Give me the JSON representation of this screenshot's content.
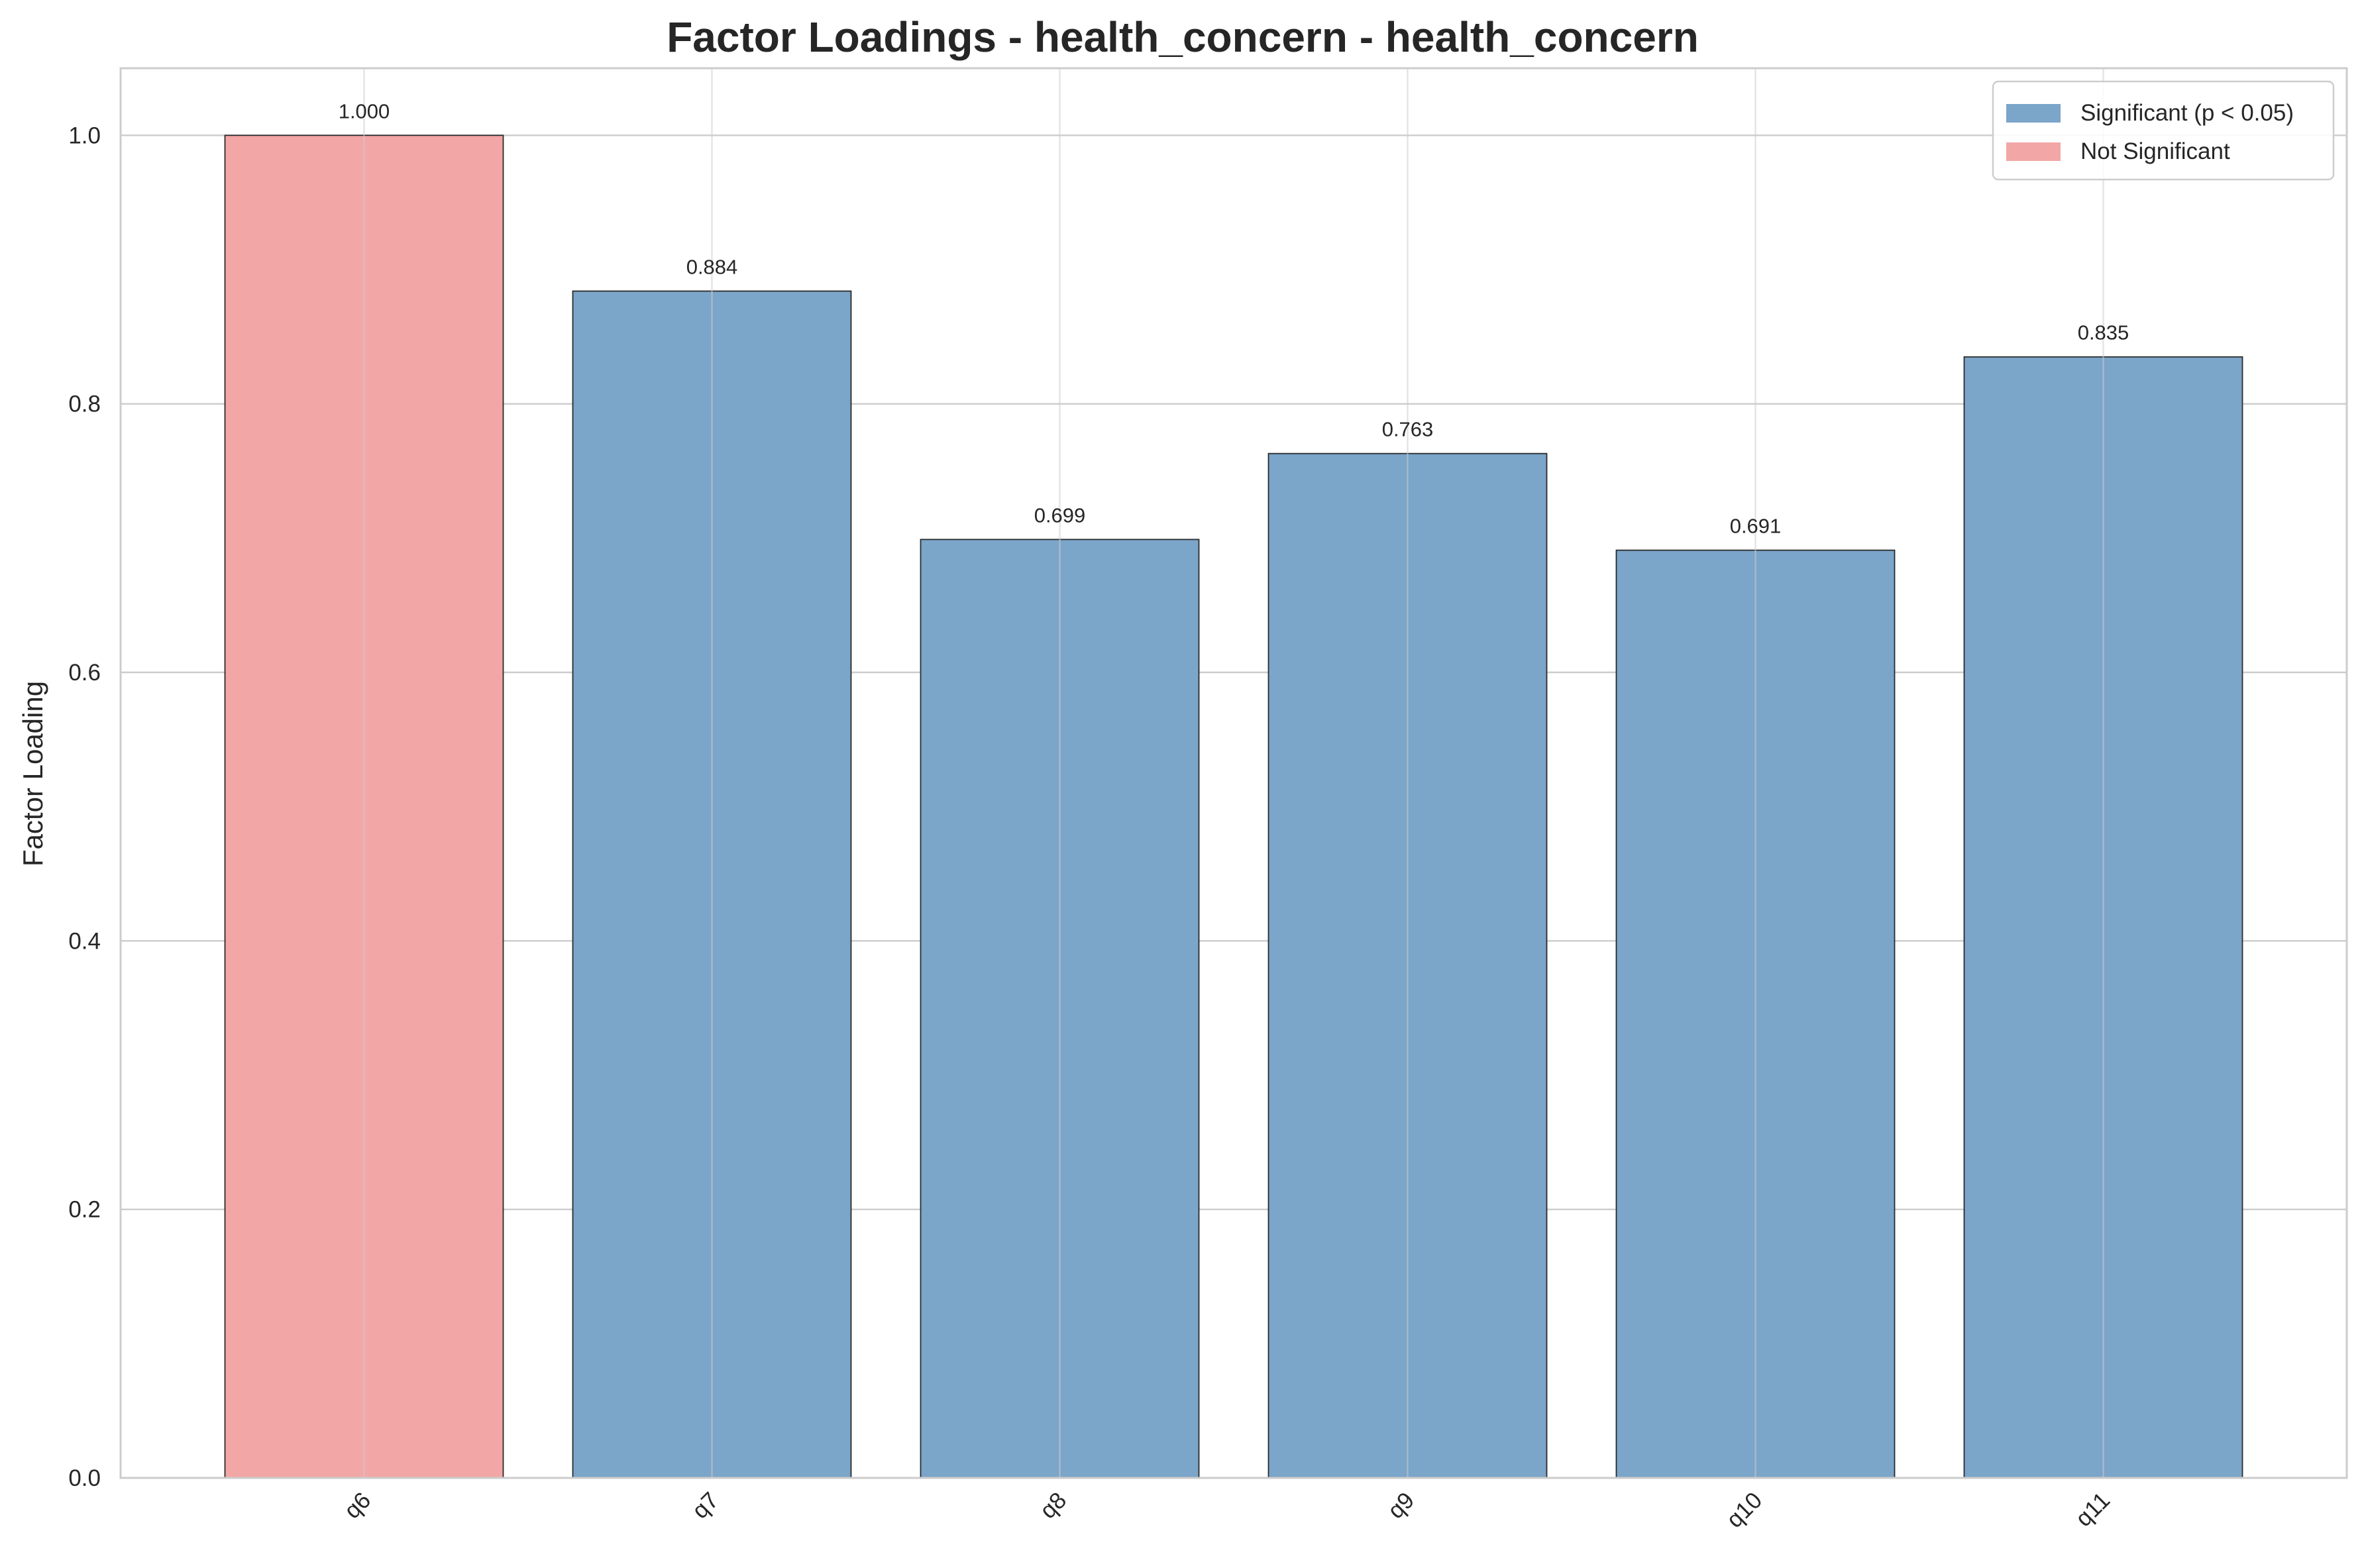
{
  "chart_data": {
    "type": "bar",
    "title": "Factor Loadings - health_concern - health_concern",
    "xlabel": "",
    "ylabel": "Factor Loading",
    "categories": [
      "q6",
      "q7",
      "q8",
      "q9",
      "q10",
      "q11"
    ],
    "values": [
      1.0,
      0.884,
      0.699,
      0.763,
      0.691,
      0.835
    ],
    "value_labels": [
      "1.000",
      "0.884",
      "0.699",
      "0.763",
      "0.691",
      "0.835"
    ],
    "significant": [
      false,
      true,
      true,
      true,
      true,
      true
    ],
    "ylim": [
      0,
      1.05
    ],
    "yticks": [
      0.0,
      0.2,
      0.4,
      0.6,
      0.8,
      1.0
    ],
    "ytick_labels": [
      "0.0",
      "0.2",
      "0.4",
      "0.6",
      "0.8",
      "1.0"
    ],
    "grid": true,
    "legend": {
      "placement": "top-right",
      "entries": [
        {
          "label": "Significant (p < 0.05)",
          "color": "#7BA5C9"
        },
        {
          "label": "Not Significant",
          "color": "#F3A6A6"
        }
      ]
    },
    "colors": {
      "significant": "#7BA5C9",
      "not_significant": "#F3A6A6",
      "edge": "#2b2b2b"
    }
  }
}
